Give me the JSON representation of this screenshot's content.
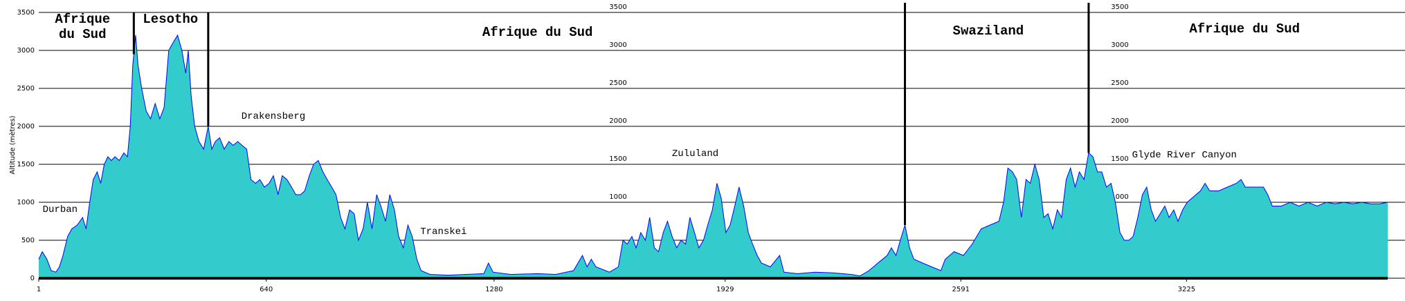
{
  "chart_data": {
    "type": "area",
    "ylabel": "Altitude (mètres)",
    "fill_color": "#33cccc",
    "line_color": "#0000ff",
    "grid": true,
    "xlim": [
      1,
      3790
    ],
    "ylim": [
      0,
      3500
    ],
    "xticks": [
      1,
      640,
      1280,
      1929,
      2591,
      3225
    ],
    "yticks": [
      0,
      500,
      1000,
      1500,
      2000,
      2500,
      3000,
      3500
    ],
    "boundaries": [
      268,
      477,
      2434,
      2950
    ],
    "regions": [
      {
        "text": "Afrique\ndu Sud",
        "x": 124,
        "y": 3300
      },
      {
        "text": "Lesotho",
        "x": 371,
        "y": 3400
      },
      {
        "text": "Afrique du Sud",
        "x": 1402,
        "y": 3230
      },
      {
        "text": "Swaziland",
        "x": 2668,
        "y": 3250
      },
      {
        "text": "Afrique du Sud",
        "x": 3388,
        "y": 3270
      }
    ],
    "places": [
      {
        "text": "Durban",
        "x": 61,
        "y": 900
      },
      {
        "text": "Drakensberg",
        "x": 660,
        "y": 2130
      },
      {
        "text": "Transkei",
        "x": 1138,
        "y": 610
      },
      {
        "text": "Zululand",
        "x": 1845,
        "y": 1640
      },
      {
        "text": "Glyde River Canyon",
        "x": 3219,
        "y": 1620
      }
    ],
    "x": [
      1,
      11,
      24,
      36,
      49,
      59,
      69,
      82,
      94,
      109,
      124,
      134,
      144,
      154,
      165,
      175,
      185,
      195,
      205,
      215,
      227,
      240,
      250,
      258,
      265,
      273,
      280,
      290,
      303,
      315,
      328,
      341,
      353,
      366,
      378,
      391,
      403,
      414,
      421,
      429,
      439,
      451,
      464,
      477,
      487,
      497,
      509,
      522,
      535,
      547,
      560,
      572,
      585,
      597,
      610,
      622,
      635,
      648,
      660,
      673,
      685,
      698,
      711,
      723,
      736,
      748,
      761,
      773,
      786,
      799,
      811,
      824,
      836,
      849,
      861,
      874,
      887,
      899,
      912,
      924,
      937,
      950,
      962,
      975,
      987,
      1000,
      1012,
      1025,
      1038,
      1050,
      1063,
      1075,
      1100,
      1151,
      1201,
      1251,
      1264,
      1277,
      1327,
      1402,
      1453,
      1503,
      1528,
      1541,
      1553,
      1566,
      1604,
      1629,
      1642,
      1654,
      1667,
      1679,
      1692,
      1705,
      1717,
      1730,
      1742,
      1755,
      1767,
      1780,
      1793,
      1805,
      1818,
      1830,
      1843,
      1855,
      1868,
      1880,
      1893,
      1906,
      1918,
      1931,
      1943,
      1956,
      1968,
      1981,
      1994,
      2006,
      2019,
      2031,
      2056,
      2082,
      2094,
      2132,
      2182,
      2233,
      2283,
      2308,
      2333,
      2358,
      2384,
      2396,
      2409,
      2421,
      2434,
      2447,
      2459,
      2484,
      2509,
      2535,
      2547,
      2572,
      2598,
      2623,
      2648,
      2673,
      2698,
      2711,
      2723,
      2736,
      2748,
      2761,
      2774,
      2786,
      2799,
      2811,
      2824,
      2836,
      2849,
      2862,
      2874,
      2887,
      2899,
      2912,
      2924,
      2937,
      2950,
      2962,
      2975,
      2987,
      3000,
      3013,
      3025,
      3038,
      3050,
      3063,
      3075,
      3088,
      3101,
      3113,
      3126,
      3138,
      3151,
      3164,
      3176,
      3189,
      3201,
      3214,
      3227,
      3239,
      3264,
      3277,
      3290,
      3315,
      3340,
      3365,
      3378,
      3390,
      3416,
      3441,
      3453,
      3466,
      3491,
      3516,
      3541,
      3566,
      3592,
      3617,
      3642,
      3667,
      3692,
      3717,
      3742,
      3767,
      3790
    ],
    "values": [
      250,
      350,
      250,
      100,
      80,
      150,
      300,
      550,
      650,
      700,
      800,
      650,
      1000,
      1300,
      1400,
      1250,
      1500,
      1600,
      1550,
      1600,
      1550,
      1650,
      1600,
      2000,
      2800,
      3200,
      2800,
      2500,
      2200,
      2100,
      2300,
      2100,
      2250,
      3000,
      3100,
      3200,
      3000,
      2700,
      3000,
      2400,
      2000,
      1800,
      1700,
      2000,
      1700,
      1800,
      1850,
      1700,
      1800,
      1750,
      1800,
      1750,
      1700,
      1300,
      1250,
      1300,
      1200,
      1250,
      1350,
      1100,
      1350,
      1300,
      1200,
      1100,
      1100,
      1150,
      1350,
      1500,
      1550,
      1400,
      1300,
      1200,
      1100,
      800,
      650,
      900,
      850,
      500,
      650,
      1000,
      650,
      1100,
      950,
      750,
      1100,
      900,
      550,
      400,
      700,
      550,
      250,
      100,
      50,
      40,
      50,
      60,
      200,
      80,
      50,
      60,
      50,
      100,
      300,
      150,
      250,
      150,
      80,
      150,
      500,
      450,
      550,
      400,
      600,
      500,
      800,
      400,
      350,
      600,
      750,
      550,
      400,
      500,
      450,
      800,
      600,
      400,
      500,
      700,
      900,
      1250,
      1050,
      600,
      700,
      950,
      1200,
      950,
      600,
      450,
      300,
      200,
      150,
      300,
      80,
      60,
      80,
      70,
      50,
      30,
      100,
      200,
      300,
      400,
      300,
      500,
      700,
      400,
      250,
      200,
      150,
      100,
      250,
      350,
      300,
      450,
      650,
      700,
      750,
      1000,
      1450,
      1400,
      1300,
      800,
      1300,
      1250,
      1500,
      1300,
      800,
      850,
      650,
      900,
      800,
      1300,
      1450,
      1200,
      1400,
      1300,
      1650,
      1600,
      1400,
      1400,
      1200,
      1250,
      1000,
      600,
      500,
      500,
      550,
      800,
      1100,
      1200,
      900,
      750,
      850,
      950,
      800,
      900,
      750,
      900,
      1000,
      1050,
      1150,
      1250,
      1150,
      1150,
      1200,
      1250,
      1300,
      1200,
      1200,
      1200,
      1100,
      950,
      950,
      1000,
      950,
      1000,
      950,
      1000,
      980,
      1000,
      980,
      1000,
      980,
      980,
      1000
    ]
  }
}
